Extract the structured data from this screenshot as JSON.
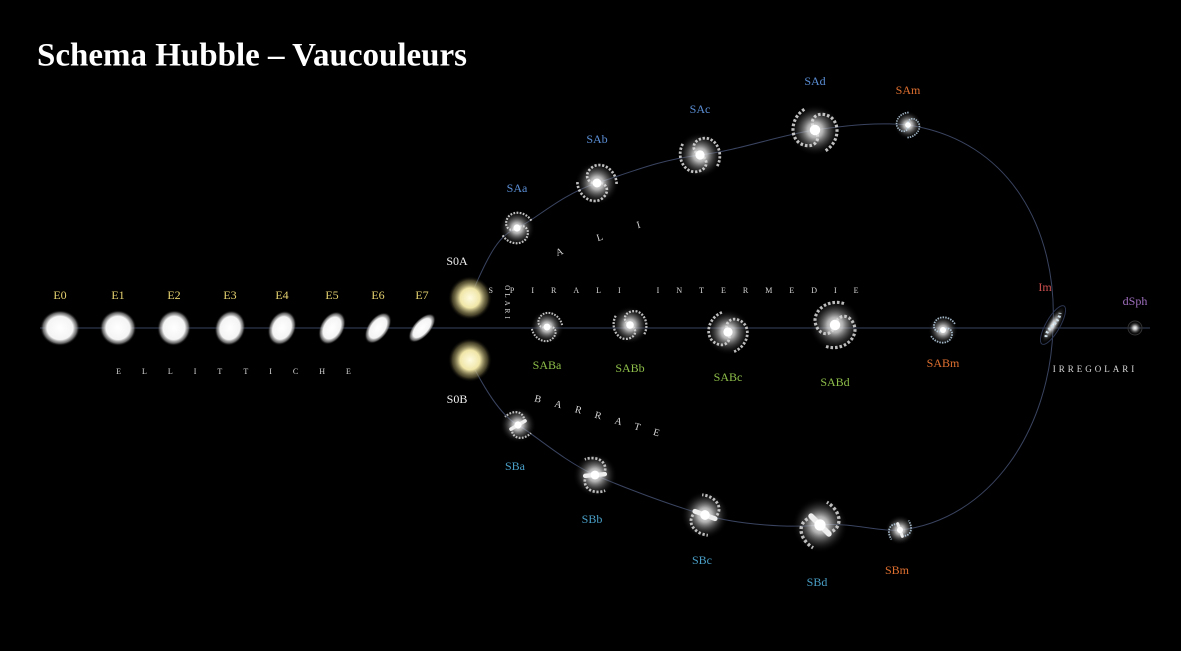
{
  "title": "Schema Hubble – Vaucouleurs",
  "ellipticals": {
    "labels": [
      "E0",
      "E1",
      "E2",
      "E3",
      "E4",
      "E5",
      "E6",
      "E7"
    ],
    "group": "ELLITTICHE"
  },
  "lenticulars": {
    "labels": [
      "S0A",
      "S0B"
    ],
    "group": "LENTICOLARI"
  },
  "spirals": {
    "labels": [
      "SAa",
      "SAb",
      "SAc",
      "SAd",
      "SAm"
    ],
    "group": "SPIRALI"
  },
  "intermediate_spirals": {
    "labels": [
      "SABa",
      "SABb",
      "SABc",
      "SABd",
      "SABm"
    ],
    "group": "SPIRALI INTERMEDIE"
  },
  "barred_spirals": {
    "labels": [
      "SBa",
      "SBb",
      "SBc",
      "SBd",
      "SBm"
    ],
    "group": "SPIRALI BARRATE"
  },
  "irregulars": {
    "labels": [
      "Im",
      "dSph"
    ],
    "group": "IRREGOLARI"
  }
}
